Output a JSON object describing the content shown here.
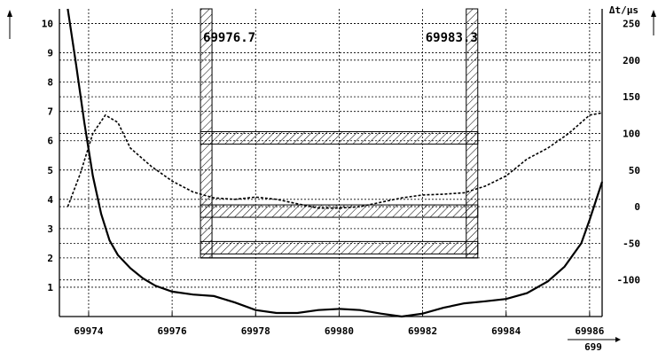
{
  "chart_data": {
    "type": "line",
    "title": "",
    "xlabel": "699",
    "xlim": [
      69973.3,
      69986.3
    ],
    "x_ticks": [
      "69974",
      "69976",
      "69978",
      "69980",
      "69982",
      "69984",
      "69986"
    ],
    "ylim_left": [
      0,
      10.5
    ],
    "y_ticks_left": [
      "1",
      "2",
      "3",
      "4",
      "5",
      "6",
      "7",
      "8",
      "9",
      "10"
    ],
    "y2label": "Δt/µs",
    "ylim_right": [
      -150,
      270
    ],
    "y_ticks_right": [
      "-100",
      "-50",
      "0",
      "50",
      "100",
      "150",
      "200",
      "250"
    ],
    "grid": true,
    "series": [
      {
        "axis": "left",
        "style": "solid",
        "x": [
          69973.5,
          69973.7,
          69973.9,
          69974.1,
          69974.3,
          69974.5,
          69974.7,
          69975.0,
          69975.3,
          69975.6,
          69976.0,
          69976.5,
          69977.0,
          69977.5,
          69978.0,
          69978.5,
          69979.0,
          69979.5,
          69980.0,
          69980.5,
          69981.0,
          69981.5,
          69982.0,
          69982.5,
          69983.0,
          69983.5,
          69984.0,
          69984.5,
          69985.0,
          69985.4,
          69985.8,
          69986.0,
          69986.3
        ],
        "y": [
          10.5,
          8.6,
          6.6,
          4.8,
          3.5,
          2.6,
          2.1,
          1.65,
          1.3,
          1.05,
          0.85,
          0.75,
          0.7,
          0.48,
          0.22,
          0.12,
          0.12,
          0.22,
          0.26,
          0.22,
          0.1,
          0.0,
          0.1,
          0.3,
          0.45,
          0.52,
          0.6,
          0.8,
          1.2,
          1.7,
          2.5,
          3.3,
          4.6
        ]
      },
      {
        "axis": "right",
        "style": "dashed",
        "x": [
          69973.5,
          69973.8,
          69974.1,
          69974.4,
          69974.7,
          69975.0,
          69975.5,
          69976.0,
          69976.5,
          69977.0,
          69977.5,
          69978.0,
          69978.5,
          69979.0,
          69979.5,
          69980.0,
          69980.5,
          69981.0,
          69981.5,
          69982.0,
          69982.5,
          69983.0,
          69983.5,
          69984.0,
          69984.5,
          69985.0,
          69985.5,
          69986.0,
          69986.3
        ],
        "y": [
          0,
          45,
          100,
          125,
          115,
          80,
          55,
          35,
          20,
          12,
          10,
          13,
          10,
          4,
          -2,
          -2,
          0,
          6,
          12,
          16,
          17,
          19,
          28,
          42,
          65,
          80,
          100,
          125,
          128
        ]
      }
    ],
    "annotations": [
      {
        "text": "69976.7",
        "x": 69976.7
      },
      {
        "text": "69983.3",
        "x": 69983.3
      }
    ]
  }
}
